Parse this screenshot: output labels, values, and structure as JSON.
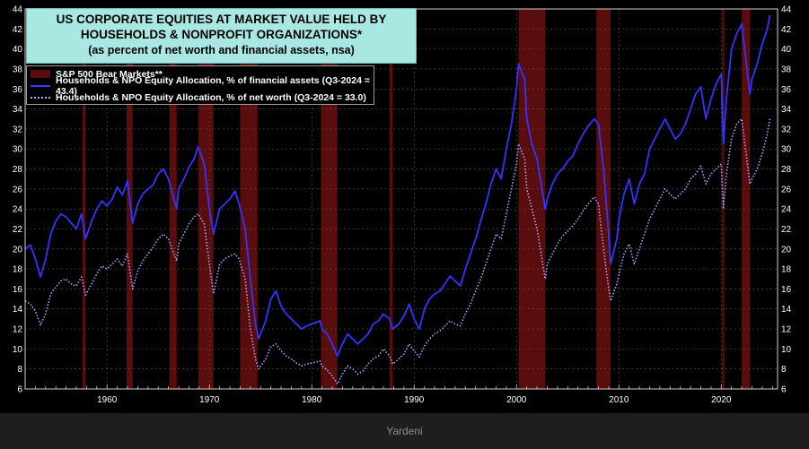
{
  "chart_data": {
    "type": "line",
    "title_lines": [
      "US CORPORATE EQUITIES AT MARKET VALUE HELD BY",
      "HOUSEHOLDS & NONPROFIT ORGANIZATIONS*"
    ],
    "subtitle": "(as percent of net worth and financial assets, nsa)",
    "xlim": [
      1952,
      2025.5
    ],
    "ylim": [
      6,
      44
    ],
    "y_ticks": [
      6,
      8,
      10,
      12,
      14,
      16,
      18,
      20,
      22,
      24,
      26,
      28,
      30,
      32,
      34,
      36,
      38,
      40,
      42,
      44
    ],
    "x_ticks": [
      1960,
      1970,
      1980,
      1990,
      2000,
      2010,
      2020
    ],
    "grid": true,
    "legend_placement": "top-left",
    "legend": [
      {
        "label": "S&P 500 Bear Markets**",
        "style": "bar"
      },
      {
        "label": "Households & NPO Equity Allocation, % of financial assets (Q3-2024 = 43.4)",
        "style": "solid"
      },
      {
        "label": "Households & NPO Equity Allocation, % of net worth (Q3-2024 = 33.0)",
        "style": "dotted"
      }
    ],
    "bear_markets": [
      [
        1957.6,
        1957.9
      ],
      [
        1961.9,
        1962.5
      ],
      [
        1966.1,
        1966.8
      ],
      [
        1968.9,
        1970.4
      ],
      [
        1973.0,
        1974.7
      ],
      [
        1980.9,
        1982.5
      ],
      [
        1987.6,
        1987.9
      ],
      [
        2000.2,
        2002.8
      ],
      [
        2007.8,
        2009.2
      ],
      [
        2020.1,
        2020.3
      ],
      [
        2022.0,
        2022.8
      ]
    ],
    "series": [
      {
        "style": "solid",
        "color": "#3434ff",
        "x": [
          1952,
          1952.5,
          1953,
          1953.5,
          1954,
          1954.5,
          1955,
          1955.5,
          1956,
          1956.5,
          1957,
          1957.5,
          1957.9,
          1958.5,
          1959,
          1959.5,
          1960,
          1960.5,
          1961,
          1961.5,
          1962,
          1962.5,
          1963,
          1963.5,
          1964,
          1964.5,
          1965,
          1965.5,
          1966,
          1966.8,
          1967,
          1967.5,
          1968,
          1968.5,
          1968.9,
          1969.5,
          1970,
          1970.4,
          1971,
          1971.5,
          1972,
          1972.5,
          1972.9,
          1973.5,
          1974,
          1974.5,
          1974.8,
          1975.5,
          1976,
          1976.5,
          1977,
          1977.5,
          1978,
          1978.5,
          1979,
          1979.5,
          1980,
          1980.8,
          1981,
          1981.5,
          1982,
          1982.5,
          1983,
          1983.5,
          1984,
          1984.5,
          1985,
          1985.5,
          1986,
          1986.5,
          1987,
          1987.6,
          1987.9,
          1988.5,
          1989,
          1989.5,
          1990,
          1990.5,
          1991,
          1991.5,
          1992,
          1992.5,
          1993,
          1993.5,
          1994,
          1994.5,
          1995,
          1995.5,
          1996,
          1996.5,
          1997,
          1997.5,
          1998,
          1998.5,
          1999,
          1999.5,
          2000,
          2000.2,
          2000.8,
          2001,
          2001.5,
          2002,
          2002.8,
          2003,
          2003.5,
          2004,
          2004.5,
          2005,
          2005.5,
          2006,
          2006.5,
          2007,
          2007.6,
          2008,
          2008.5,
          2009,
          2009.2,
          2009.8,
          2010,
          2010.5,
          2011,
          2011.5,
          2012,
          2012.5,
          2013,
          2013.5,
          2014,
          2014.5,
          2015,
          2015.5,
          2016,
          2016.5,
          2017,
          2017.5,
          2018,
          2018.5,
          2019,
          2019.5,
          2020,
          2020.2,
          2020.5,
          2021,
          2021.5,
          2022,
          2022.8,
          2023,
          2023.5,
          2024,
          2024.5,
          2024.75
        ],
        "y": [
          20.0,
          20.4,
          19.0,
          17.2,
          19.0,
          21.5,
          22.8,
          23.5,
          23.2,
          22.6,
          22.0,
          23.5,
          21.0,
          22.8,
          24.0,
          24.8,
          24.3,
          25.0,
          26.2,
          25.4,
          26.8,
          22.6,
          24.5,
          25.5,
          26.0,
          26.4,
          27.5,
          28.0,
          27.0,
          24.0,
          26.0,
          27.0,
          28.2,
          29.0,
          30.2,
          28.5,
          24.0,
          21.5,
          24.0,
          24.5,
          25.0,
          25.8,
          24.5,
          22.0,
          17.0,
          12.5,
          11.0,
          12.8,
          15.0,
          15.8,
          14.3,
          13.5,
          13.0,
          12.5,
          12.0,
          12.3,
          12.5,
          12.8,
          12.0,
          11.5,
          10.5,
          9.3,
          10.5,
          11.5,
          11.0,
          10.5,
          11.0,
          11.5,
          12.5,
          12.8,
          13.5,
          13.0,
          12.0,
          12.5,
          13.3,
          14.5,
          13.0,
          12.0,
          14.0,
          15.0,
          15.5,
          15.8,
          16.5,
          17.3,
          16.8,
          16.3,
          18.0,
          19.5,
          21.0,
          22.8,
          24.5,
          26.5,
          28.0,
          27.0,
          30.0,
          32.5,
          36.0,
          38.5,
          37.0,
          33.0,
          30.5,
          29.0,
          24.0,
          25.0,
          26.5,
          27.5,
          28.0,
          28.8,
          29.3,
          30.5,
          31.5,
          32.3,
          33.0,
          32.5,
          28.0,
          21.5,
          18.5,
          21.0,
          23.0,
          25.5,
          27.0,
          24.5,
          26.5,
          27.5,
          30.0,
          31.0,
          32.0,
          33.0,
          32.0,
          31.0,
          31.5,
          32.5,
          34.0,
          35.5,
          36.2,
          33.0,
          35.0,
          36.5,
          37.5,
          30.5,
          35.0,
          40.0,
          41.5,
          42.5,
          35.5,
          37.0,
          38.5,
          40.5,
          42.0,
          43.4
        ]
      },
      {
        "style": "dotted",
        "color": "#a7a7ff",
        "x": [
          1952,
          1952.5,
          1953,
          1953.5,
          1954,
          1954.5,
          1955,
          1955.5,
          1956,
          1956.5,
          1957,
          1957.5,
          1957.9,
          1958.5,
          1959,
          1959.5,
          1960,
          1960.5,
          1961,
          1961.5,
          1962,
          1962.5,
          1963,
          1963.5,
          1964,
          1964.5,
          1965,
          1965.5,
          1966,
          1966.8,
          1967,
          1967.5,
          1968,
          1968.5,
          1968.9,
          1969.5,
          1970,
          1970.4,
          1971,
          1971.5,
          1972,
          1972.5,
          1972.9,
          1973.5,
          1974,
          1974.5,
          1974.8,
          1975.5,
          1976,
          1976.5,
          1977,
          1977.5,
          1978,
          1978.5,
          1979,
          1979.5,
          1980,
          1980.8,
          1981,
          1981.5,
          1982,
          1982.5,
          1983,
          1983.5,
          1984,
          1984.5,
          1985,
          1985.5,
          1986,
          1986.5,
          1987,
          1987.6,
          1987.9,
          1988.5,
          1989,
          1989.5,
          1990,
          1990.5,
          1991,
          1991.5,
          1992,
          1992.5,
          1993,
          1993.5,
          1994,
          1994.5,
          1995,
          1995.5,
          1996,
          1996.5,
          1997,
          1997.5,
          1998,
          1998.5,
          1999,
          1999.5,
          2000,
          2000.2,
          2000.8,
          2001,
          2001.5,
          2002,
          2002.8,
          2003,
          2003.5,
          2004,
          2004.5,
          2005,
          2005.5,
          2006,
          2006.5,
          2007,
          2007.6,
          2008,
          2008.5,
          2009,
          2009.2,
          2009.8,
          2010,
          2010.5,
          2011,
          2011.5,
          2012,
          2012.5,
          2013,
          2013.5,
          2014,
          2014.5,
          2015,
          2015.5,
          2016,
          2016.5,
          2017,
          2017.5,
          2018,
          2018.5,
          2019,
          2019.5,
          2020,
          2020.2,
          2020.5,
          2021,
          2021.5,
          2022,
          2022.8,
          2023,
          2023.5,
          2024,
          2024.5,
          2024.75
        ],
        "y": [
          14.8,
          14.5,
          13.8,
          12.4,
          13.5,
          15.5,
          16.2,
          16.8,
          17.0,
          16.5,
          16.3,
          17.2,
          15.4,
          16.5,
          17.5,
          18.3,
          18.0,
          18.5,
          19.0,
          18.3,
          19.5,
          16.0,
          17.8,
          18.8,
          19.5,
          20.2,
          21.0,
          21.5,
          21.0,
          18.8,
          20.5,
          21.5,
          22.5,
          23.2,
          23.5,
          22.5,
          18.5,
          15.5,
          18.5,
          19.0,
          19.3,
          19.5,
          19.0,
          17.0,
          12.0,
          9.0,
          8.0,
          9.0,
          10.2,
          10.5,
          9.8,
          9.3,
          9.0,
          8.6,
          8.3,
          8.5,
          8.6,
          8.8,
          8.3,
          7.9,
          7.3,
          6.5,
          7.5,
          8.3,
          8.0,
          7.5,
          7.8,
          8.5,
          9.0,
          9.3,
          10.0,
          9.3,
          8.5,
          9.0,
          9.5,
          10.5,
          9.8,
          9.2,
          10.3,
          11.0,
          11.5,
          11.8,
          12.3,
          12.8,
          12.5,
          12.3,
          13.5,
          14.5,
          15.8,
          17.0,
          18.5,
          20.0,
          21.5,
          21.0,
          23.5,
          26.0,
          28.5,
          30.5,
          29.0,
          26.0,
          24.0,
          22.0,
          17.0,
          18.5,
          19.5,
          20.5,
          21.3,
          21.8,
          22.3,
          23.0,
          23.8,
          24.5,
          25.2,
          24.5,
          20.0,
          16.0,
          14.8,
          16.5,
          17.5,
          19.5,
          20.5,
          18.5,
          20.0,
          21.5,
          23.0,
          24.0,
          25.0,
          26.0,
          25.5,
          25.0,
          25.5,
          26.0,
          27.0,
          27.5,
          28.3,
          26.5,
          27.5,
          28.0,
          28.5,
          24.0,
          27.5,
          31.0,
          32.5,
          33.0,
          26.5,
          27.0,
          28.0,
          29.5,
          31.5,
          33.0
        ]
      }
    ]
  },
  "footer": {
    "source": "Yardeni"
  }
}
